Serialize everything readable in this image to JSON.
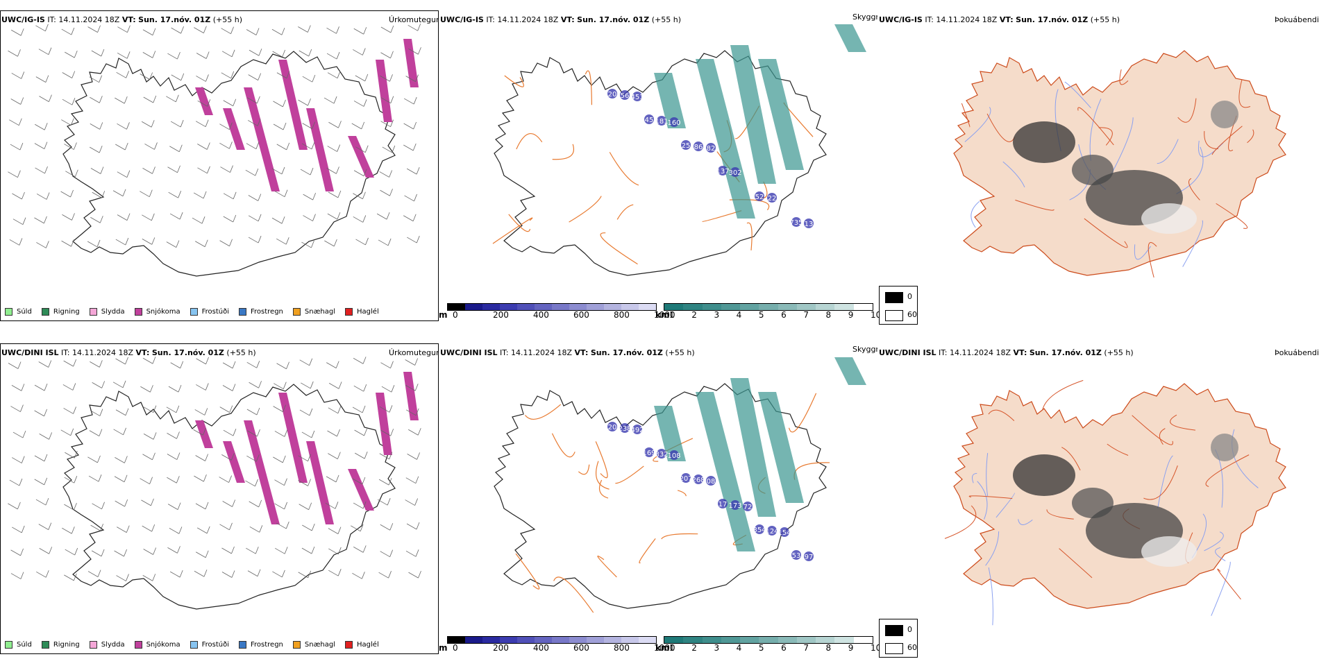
{
  "rows": [
    {
      "model": "UWC/IG-IS",
      "it_label": "IT:",
      "it_value": "14.11.2024 18Z",
      "vt_label": "VT:",
      "vt_value": "Sun. 17.nóv. 01Z",
      "lead": "(+55 h)",
      "products": [
        "Úrkomutegund",
        "Skyggni",
        "Þokuábendi"
      ],
      "visibility_labels": [
        "20",
        "45",
        "25",
        "137",
        "52",
        "735",
        "56",
        "181",
        "86",
        "302",
        "22",
        "13",
        "451",
        "160",
        "82"
      ]
    },
    {
      "model": "UWC/DINI ISL",
      "it_label": "IT:",
      "it_value": "14.11.2024 18Z",
      "vt_label": "VT:",
      "vt_value": "Sun. 17.nóv. 01Z",
      "lead": "(+55 h)",
      "products": [
        "Úrkomutegund",
        "Skyggni",
        "Þokuábendi"
      ],
      "visibility_labels": [
        "20",
        "169",
        "207",
        "17",
        "354",
        "53",
        "238",
        "332",
        "268",
        "173",
        "124",
        "97",
        "492",
        "108",
        "08",
        "72",
        "154"
      ]
    }
  ],
  "precip_legend": [
    {
      "label": "Súld",
      "color": "#90ee90"
    },
    {
      "label": "Rigning",
      "color": "#2e8b57"
    },
    {
      "label": "Slydda",
      "color": "#f4a6d7"
    },
    {
      "label": "Snjókoma",
      "color": "#c0409c"
    },
    {
      "label": "Frostúði",
      "color": "#87c4f0"
    },
    {
      "label": "Frostregn",
      "color": "#3a78c4"
    },
    {
      "label": "Snæhagl",
      "color": "#f0a020"
    },
    {
      "label": "Haglél",
      "color": "#e02020"
    }
  ],
  "cloud_base_scale": {
    "unit": "m",
    "ticks": [
      "0",
      "200",
      "400",
      "600",
      "800",
      "1000"
    ],
    "colors": [
      "#000000",
      "#1a1a8a",
      "#2a2aa0",
      "#3c3cb0",
      "#5050b8",
      "#6464c0",
      "#7878c8",
      "#8c8cd0",
      "#a0a0d8",
      "#b4b4e0",
      "#c8c8ea",
      "#dcdcf4"
    ]
  },
  "visibility_scale": {
    "unit": "km",
    "ticks": [
      "1",
      "2",
      "3",
      "4",
      "5",
      "6",
      "7",
      "8",
      "9",
      "10"
    ],
    "colors": [
      "#1f7a78",
      "#2f8482",
      "#3f8e8c",
      "#509896",
      "#62a3a1",
      "#76aeac",
      "#8abab8",
      "#a0c7c5",
      "#b7d5d3",
      "#cfe4e2",
      "#ffffff"
    ]
  },
  "fog_legend": [
    {
      "label": "0",
      "color": "#000000"
    },
    {
      "label": "60",
      "color": "#ffffff"
    }
  ],
  "colors": {
    "snow": "#c0409c",
    "visibility_fill": "#3a9690",
    "land": "#f5dcca",
    "roads": "#e87a30",
    "rivers": "#8aa0f0",
    "low_cloud": "#3b3bb0"
  }
}
